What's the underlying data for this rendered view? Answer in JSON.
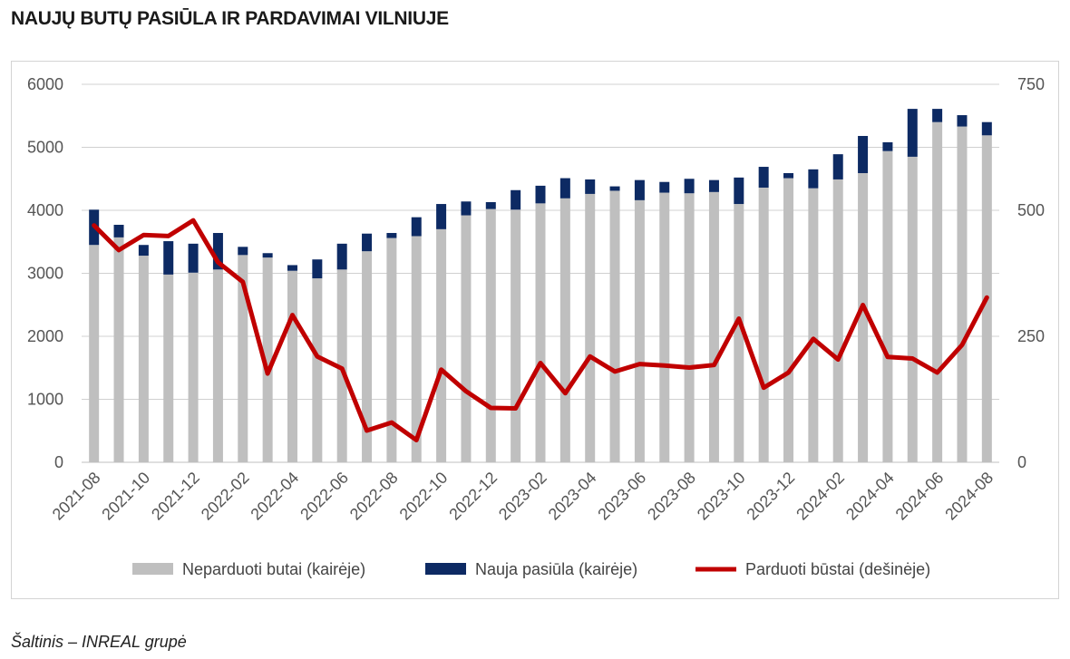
{
  "title": "NAUJŲ BUTŲ PASIŪLA IR PARDAVIMAI VILNIUJE",
  "source": "Šaltinis – INREAL grupė",
  "chart_data": {
    "type": "bar",
    "stacked": true,
    "x": [
      "2021-08",
      "2021-09",
      "2021-10",
      "2021-11",
      "2021-12",
      "2022-01",
      "2022-02",
      "2022-03",
      "2022-04",
      "2022-05",
      "2022-06",
      "2022-07",
      "2022-08",
      "2022-09",
      "2022-10",
      "2022-11",
      "2022-12",
      "2023-01",
      "2023-02",
      "2023-03",
      "2023-04",
      "2023-05",
      "2023-06",
      "2023-07",
      "2023-08",
      "2023-09",
      "2023-10",
      "2023-11",
      "2023-12",
      "2024-01",
      "2024-02",
      "2024-03",
      "2024-04",
      "2024-05",
      "2024-06",
      "2024-07",
      "2024-08"
    ],
    "x_tick_labels": [
      "2021-08",
      "2021-10",
      "2021-12",
      "2022-02",
      "2022-04",
      "2022-06",
      "2022-08",
      "2022-10",
      "2022-12",
      "2023-02",
      "2023-04",
      "2023-06",
      "2023-08",
      "2023-10",
      "2023-12",
      "2024-02",
      "2024-04",
      "2024-06",
      "2024-08"
    ],
    "series": [
      {
        "name": "Neparduoti butai (kairėje)",
        "axis": "left",
        "color": "#bfbfbf",
        "values": [
          3450,
          3570,
          3280,
          2980,
          3010,
          3060,
          3290,
          3250,
          3040,
          2920,
          3060,
          3350,
          3560,
          3590,
          3700,
          3920,
          4020,
          4010,
          4110,
          4190,
          4260,
          4310,
          4160,
          4280,
          4270,
          4290,
          4100,
          4360,
          4510,
          4350,
          4490,
          4590,
          4940,
          4850,
          5400,
          5330,
          5190
        ]
      },
      {
        "name": "Nauja pasiūla (kairėje)",
        "axis": "left",
        "color": "#0d2a63",
        "values": [
          560,
          200,
          170,
          530,
          460,
          580,
          130,
          70,
          90,
          300,
          410,
          280,
          80,
          300,
          400,
          220,
          110,
          310,
          280,
          320,
          230,
          70,
          320,
          170,
          230,
          190,
          420,
          330,
          80,
          300,
          400,
          590,
          140,
          760,
          210,
          180,
          210
        ]
      },
      {
        "name": "Parduoti būstai (dešinėje)",
        "axis": "right",
        "type": "line",
        "color": "#c00000",
        "values": [
          470,
          421,
          451,
          449,
          480,
          397,
          358,
          176,
          292,
          210,
          186,
          63,
          79,
          44,
          184,
          141,
          108,
          107,
          197,
          137,
          210,
          180,
          195,
          192,
          188,
          193,
          285,
          148,
          178,
          245,
          204,
          312,
          209,
          206,
          178,
          233,
          327
        ]
      }
    ],
    "y_left": {
      "min": 0,
      "max": 6000,
      "ticks": [
        0,
        1000,
        2000,
        3000,
        4000,
        5000,
        6000
      ]
    },
    "y_right": {
      "min": 0,
      "max": 750,
      "ticks": [
        0,
        250,
        500,
        750
      ]
    },
    "grid": true,
    "legend_position": "bottom"
  }
}
